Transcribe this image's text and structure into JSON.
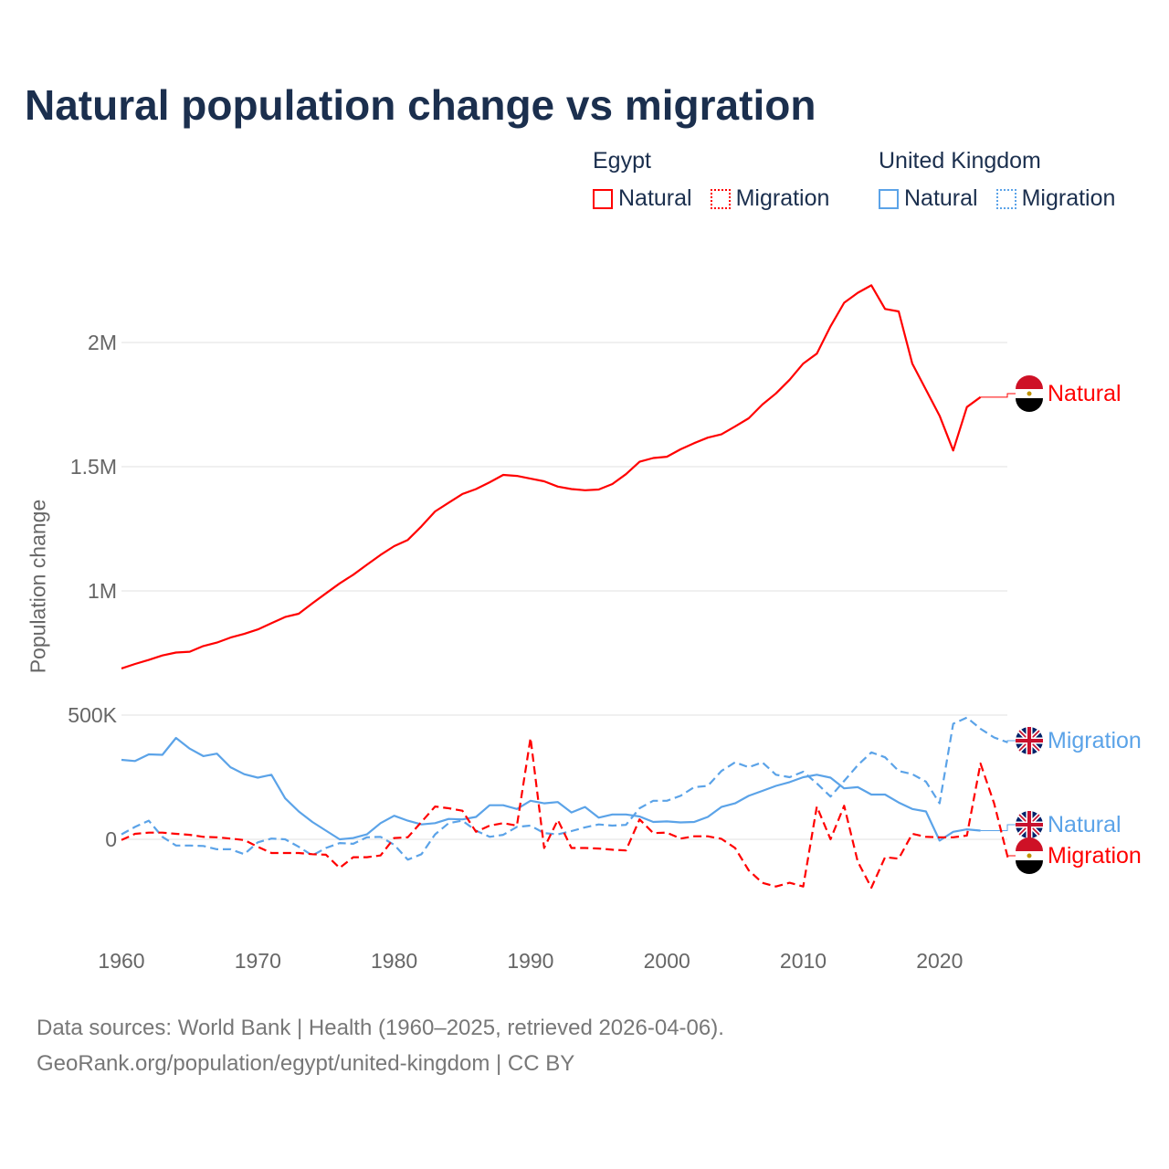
{
  "title": "Natural population change vs migration",
  "legend": [
    {
      "group": "Egypt",
      "items": [
        {
          "label": "Natural",
          "color": "#ff0000",
          "style": "solid"
        },
        {
          "label": "Migration",
          "color": "#ff0000",
          "style": "dotted"
        }
      ]
    },
    {
      "group": "United Kingdom",
      "items": [
        {
          "label": "Natural",
          "color": "#5ba3e8",
          "style": "solid"
        },
        {
          "label": "Migration",
          "color": "#5ba3e8",
          "style": "dotted"
        }
      ]
    }
  ],
  "footer": {
    "line1": "Data sources: World Bank | Health (1960–2025, retrieved 2026-04-06).",
    "line2": "GeoRank.org/population/egypt/united-kingdom | CC BY"
  },
  "chart_data": {
    "type": "line",
    "title": "Natural population change vs migration",
    "xlabel": "",
    "ylabel": "Population change",
    "xlim": [
      1960,
      2025
    ],
    "ylim": [
      -400000,
      2350000
    ],
    "grid": true,
    "x_ticks": [
      1960,
      1970,
      1980,
      1990,
      2000,
      2010,
      2020
    ],
    "x_tick_labels": [
      "1960",
      "1970",
      "1980",
      "1990",
      "2000",
      "2010",
      "2020"
    ],
    "y_ticks": [
      0,
      500000,
      1000000,
      1500000,
      2000000
    ],
    "y_tick_labels": [
      "0",
      "500K",
      "1M",
      "1.5M",
      "2M"
    ],
    "legend_position": "top-right",
    "series": [
      {
        "name": "Egypt Natural",
        "end_label": "Natural",
        "country": "egypt",
        "color": "#ff0000",
        "dashed": false,
        "start": 1960,
        "values": [
          688000,
          706000,
          722000,
          740000,
          752000,
          755000,
          778000,
          792000,
          812000,
          827000,
          845000,
          870000,
          895000,
          908000,
          950000,
          990000,
          1030000,
          1065000,
          1105000,
          1145000,
          1180000,
          1205000,
          1260000,
          1320000,
          1355000,
          1390000,
          1410000,
          1437000,
          1467000,
          1463000,
          1452000,
          1441000,
          1420000,
          1410000,
          1405000,
          1408000,
          1430000,
          1470000,
          1520000,
          1535000,
          1540000,
          1570000,
          1595000,
          1617000,
          1630000,
          1662000,
          1695000,
          1750000,
          1795000,
          1850000,
          1915000,
          1955000,
          2065000,
          2160000,
          2200000,
          2230000,
          2135000,
          2125000,
          1915000,
          1810000,
          1705000,
          1565000,
          1740000,
          1780000
        ]
      },
      {
        "name": "United Kingdom Migration",
        "end_label": "Migration",
        "country": "uk",
        "color": "#5ba3e8",
        "dashed": true,
        "start": 1960,
        "values": [
          20000,
          50000,
          75000,
          10000,
          -25000,
          -25000,
          -27000,
          -40000,
          -40000,
          -60000,
          -12000,
          3000,
          0,
          -30000,
          -65000,
          -35000,
          -15000,
          -18000,
          8000,
          10000,
          -22000,
          -82000,
          -60000,
          20000,
          65000,
          75000,
          35000,
          10000,
          18000,
          50000,
          55000,
          25000,
          20000,
          33000,
          48000,
          60000,
          55000,
          58000,
          125000,
          155000,
          155000,
          175000,
          210000,
          215000,
          275000,
          310000,
          290000,
          310000,
          260000,
          250000,
          272000,
          225000,
          172000,
          235000,
          298000,
          350000,
          330000,
          275000,
          262000,
          232000,
          145000,
          465000,
          490000,
          445000,
          410000,
          390000
        ]
      },
      {
        "name": "United Kingdom Natural",
        "end_label": "Natural",
        "country": "uk",
        "color": "#5ba3e8",
        "dashed": false,
        "start": 1960,
        "values": [
          320000,
          315000,
          342000,
          340000,
          408000,
          365000,
          335000,
          345000,
          290000,
          262000,
          248000,
          260000,
          165000,
          112000,
          70000,
          35000,
          0,
          5000,
          20000,
          65000,
          95000,
          75000,
          60000,
          65000,
          82000,
          80000,
          90000,
          137000,
          137000,
          122000,
          155000,
          145000,
          150000,
          108000,
          130000,
          87000,
          100000,
          100000,
          92000,
          70000,
          72000,
          68000,
          70000,
          90000,
          130000,
          145000,
          175000,
          195000,
          215000,
          230000,
          250000,
          260000,
          248000,
          205000,
          210000,
          180000,
          180000,
          148000,
          122000,
          112000,
          -5000,
          30000,
          40000,
          35000
        ]
      },
      {
        "name": "Egypt Migration",
        "end_label": "Migration",
        "country": "egypt",
        "color": "#ff0000",
        "dashed": true,
        "start": 1960,
        "values": [
          -3000,
          22000,
          27000,
          27000,
          22000,
          18000,
          10000,
          8000,
          3000,
          -3000,
          -30000,
          -55000,
          -55000,
          -55000,
          -60000,
          -62000,
          -115000,
          -72000,
          -72000,
          -65000,
          5000,
          8000,
          70000,
          132000,
          125000,
          115000,
          30000,
          55000,
          65000,
          55000,
          408000,
          -35000,
          78000,
          -35000,
          -35000,
          -37000,
          -42000,
          -45000,
          80000,
          25000,
          27000,
          3000,
          12000,
          12000,
          2000,
          -35000,
          -125000,
          -175000,
          -190000,
          -175000,
          -190000,
          132000,
          0,
          135000,
          -90000,
          -195000,
          -72000,
          -78000,
          22000,
          10000,
          8000,
          8000,
          15000,
          305000,
          145000,
          -72000
        ]
      }
    ]
  }
}
